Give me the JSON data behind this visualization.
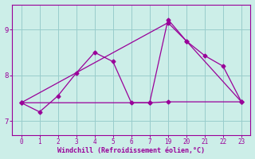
{
  "xlabel": "Windchill (Refroidissement éolien,°C)",
  "bg_color": "#cceee8",
  "line_color": "#990099",
  "grid_color": "#99cccc",
  "x_labels": [
    0,
    1,
    2,
    3,
    4,
    5,
    6,
    7,
    19,
    20,
    21,
    22,
    23
  ],
  "x_positions": [
    0,
    1,
    2,
    3,
    4,
    5,
    6,
    7,
    8,
    9,
    10,
    11,
    12
  ],
  "series": [
    {
      "xpos": [
        0,
        1,
        2,
        3,
        4,
        5,
        6,
        7,
        8,
        9,
        10,
        11,
        12
      ],
      "y": [
        7.4,
        7.2,
        7.55,
        8.05,
        8.5,
        8.3,
        7.4,
        7.4,
        9.22,
        8.75,
        8.43,
        8.2,
        7.42
      ]
    },
    {
      "xpos": [
        0,
        8,
        9,
        12
      ],
      "y": [
        7.4,
        9.15,
        8.75,
        7.42
      ]
    },
    {
      "xpos": [
        0,
        7,
        8,
        12
      ],
      "y": [
        7.4,
        7.4,
        7.42,
        7.42
      ]
    }
  ],
  "yticks": [
    7,
    8,
    9
  ],
  "ylim": [
    6.7,
    9.55
  ],
  "xlim": [
    -0.5,
    12.5
  ]
}
